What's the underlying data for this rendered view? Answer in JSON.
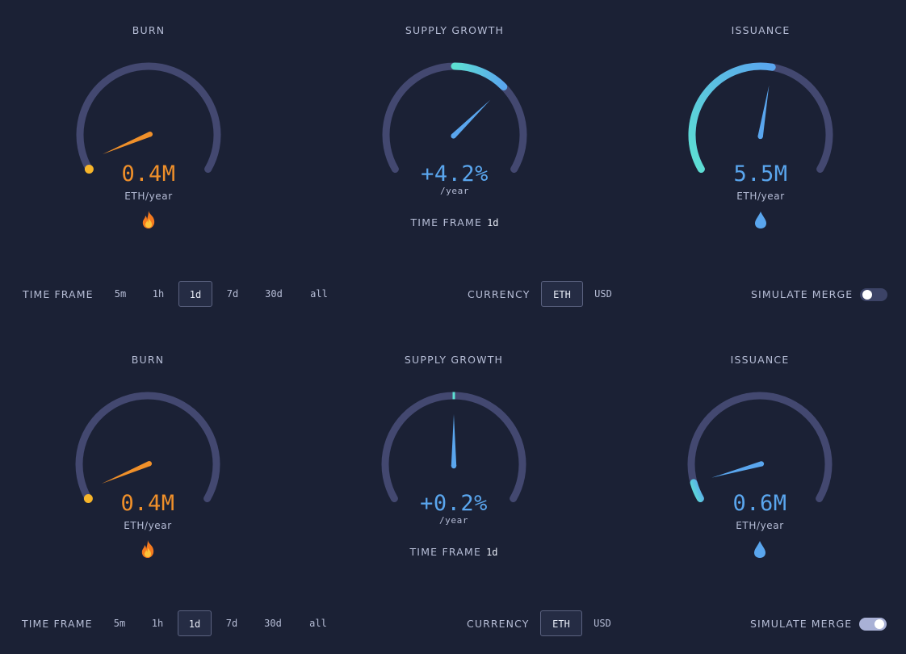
{
  "panels": [
    {
      "burn": {
        "title": "BURN",
        "value": "0.4M",
        "unit": "ETH/year",
        "icon": "fire-icon",
        "fraction": 0.03
      },
      "supply": {
        "title": "SUPPLY GROWTH",
        "value": "+4.2%",
        "unit": "/year",
        "fraction": 0.69,
        "arc_from": 0.5,
        "timeframe_label": "TIME FRAME",
        "timeframe_value": "1d"
      },
      "issuance": {
        "title": "ISSUANCE",
        "value": "5.5M",
        "unit": "ETH/year",
        "icon": "droplet-icon",
        "fraction": 0.54
      },
      "controls": {
        "timeframe_label": "TIME FRAME",
        "timeframes": [
          "5m",
          "1h",
          "1d",
          "7d",
          "30d",
          "all"
        ],
        "selected_timeframe": "1d",
        "currency_label": "CURRENCY",
        "currencies": [
          "ETH",
          "USD"
        ],
        "selected_currency": "ETH",
        "simulate_label": "SIMULATE MERGE",
        "simulate_merge": false
      }
    },
    {
      "burn": {
        "title": "BURN",
        "value": "0.4M",
        "unit": "ETH/year",
        "icon": "fire-icon",
        "fraction": 0.03
      },
      "supply": {
        "title": "SUPPLY GROWTH",
        "value": "+0.2%",
        "unit": "/year",
        "fraction": 0.5,
        "arc_from": 0.5,
        "timeframe_label": "TIME FRAME",
        "timeframe_value": "1d"
      },
      "issuance": {
        "title": "ISSUANCE",
        "value": "0.6M",
        "unit": "ETH/year",
        "icon": "droplet-icon",
        "fraction": 0.06
      },
      "controls": {
        "timeframe_label": "TIME FRAME",
        "timeframes": [
          "5m",
          "1h",
          "1d",
          "7d",
          "30d",
          "all"
        ],
        "selected_timeframe": "1d",
        "currency_label": "CURRENCY",
        "currencies": [
          "ETH",
          "USD"
        ],
        "selected_currency": "ETH",
        "simulate_label": "SIMULATE MERGE",
        "simulate_merge": true
      }
    }
  ],
  "colors": {
    "background": "#1b2135",
    "track": "#434870",
    "burn_accent": "#f0902a",
    "burn_accent_light": "#f7b52a",
    "issuance_start": "#5de0d2",
    "issuance_end": "#5aa6ee",
    "text_muted": "#b6bdd6"
  }
}
